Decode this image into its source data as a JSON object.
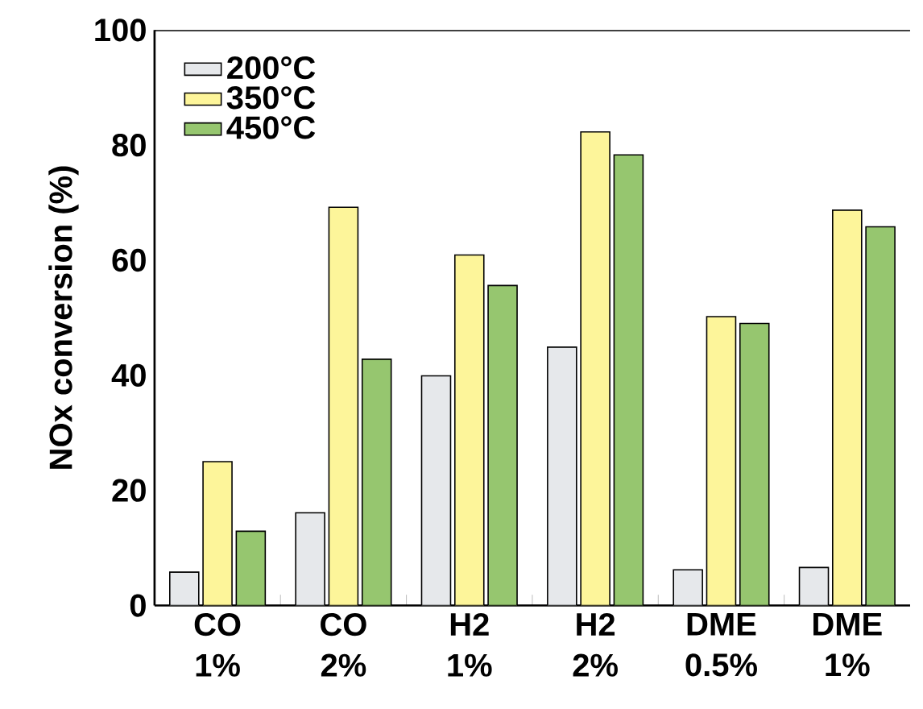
{
  "chart_data": {
    "type": "bar",
    "ylabel": "NOx conversion (%)",
    "categories": [
      "CO 1%",
      "CO 2%",
      "H2 1%",
      "H2 2%",
      "DME 0.5%",
      "DME 1%"
    ],
    "series": [
      {
        "name": "200°C",
        "color": "#e6e8eb",
        "values": [
          5.8,
          16.1,
          39.9,
          44.9,
          6.2,
          6.6
        ]
      },
      {
        "name": "350°C",
        "color": "#fdf59a",
        "values": [
          25.0,
          69.2,
          60.9,
          82.3,
          50.2,
          68.7
        ]
      },
      {
        "name": "450°C",
        "color": "#96c66f",
        "values": [
          12.9,
          42.8,
          55.6,
          78.3,
          49.0,
          65.8
        ]
      }
    ],
    "ylim": [
      0,
      100
    ],
    "yticks": [
      0,
      20,
      40,
      60,
      80,
      100
    ],
    "legend": "top left"
  }
}
